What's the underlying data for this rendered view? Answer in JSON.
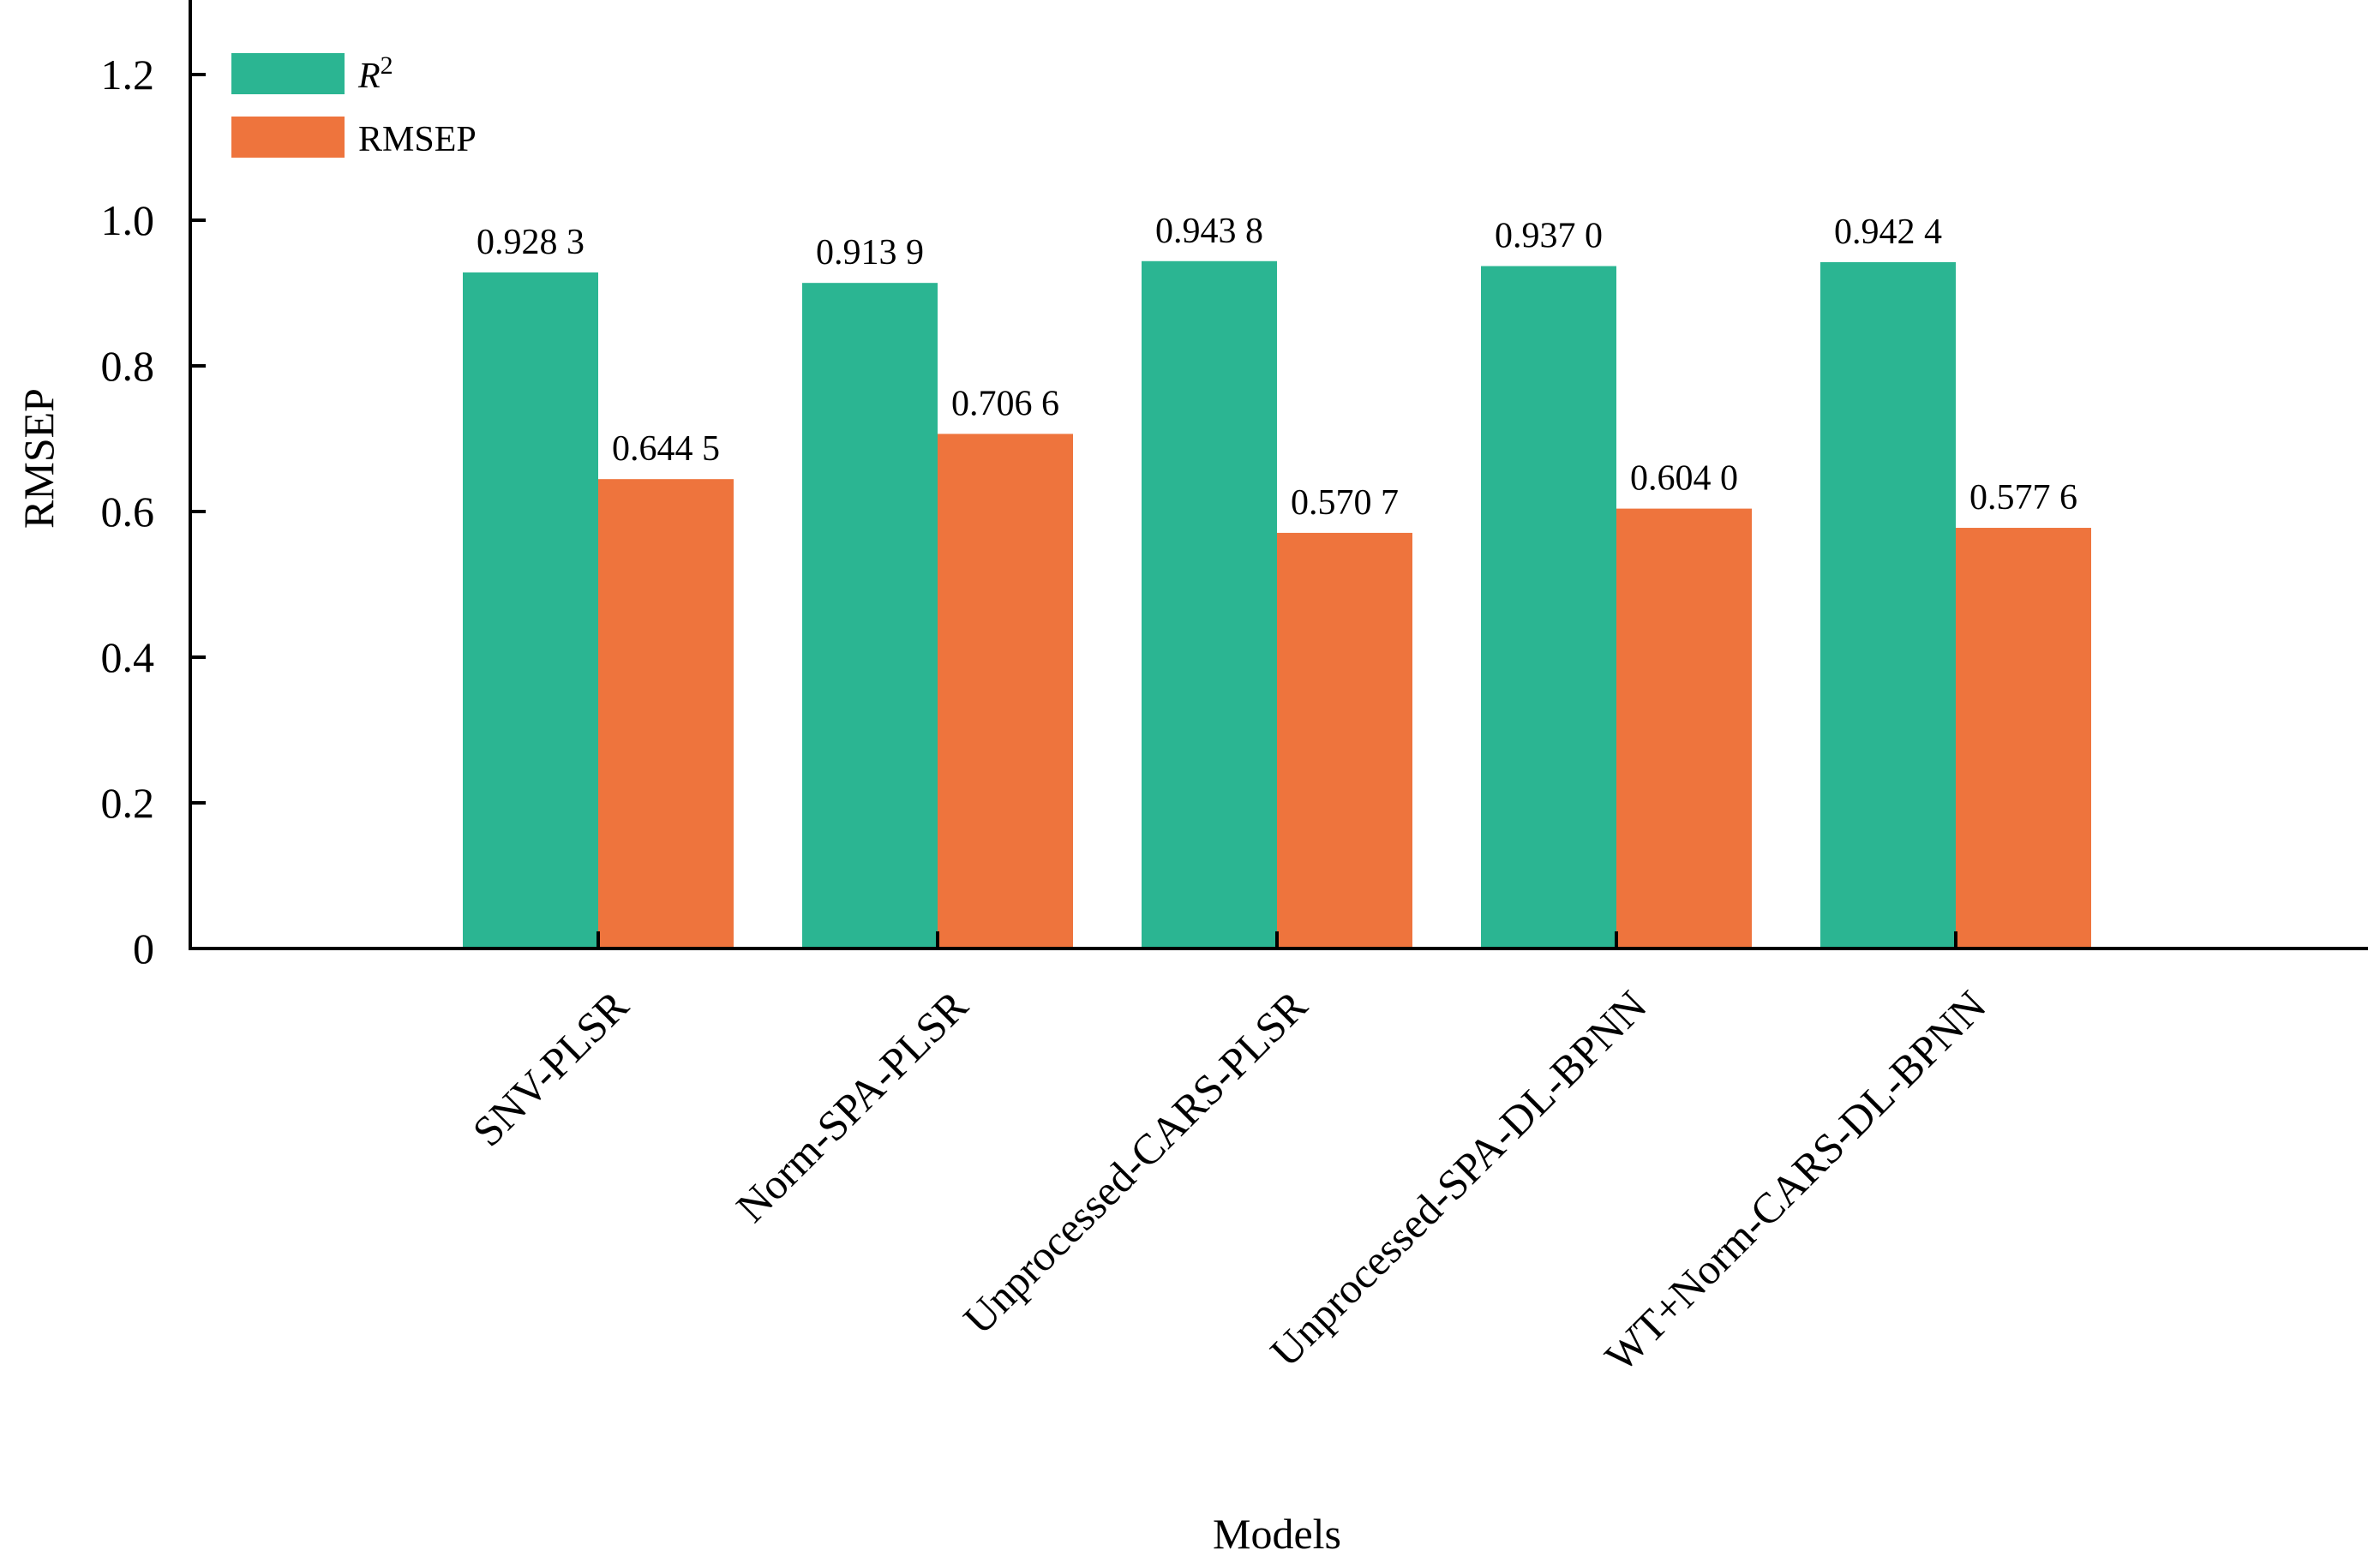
{
  "chart_data": {
    "type": "bar",
    "xlabel": "Models",
    "ylabel": "RMSEP",
    "ylim": [
      0,
      1.3
    ],
    "yticks": [
      {
        "value": 0,
        "label": "0"
      },
      {
        "value": 0.2,
        "label": "0.2"
      },
      {
        "value": 0.4,
        "label": "0.4"
      },
      {
        "value": 0.6,
        "label": "0.6"
      },
      {
        "value": 0.8,
        "label": "0.8"
      },
      {
        "value": 1.0,
        "label": "1.0"
      },
      {
        "value": 1.2,
        "label": "1.2"
      }
    ],
    "categories": [
      "SNV-PLSR",
      "Norm-SPA-PLSR",
      "Unprocessed-CARS-PLSR",
      "Unprocessed-SPA-DL-BPNN",
      "WT+Norm-CARS-DL-BPNN"
    ],
    "series": [
      {
        "name": "R",
        "name_superscript": "2",
        "color": "#2bb592",
        "values": [
          0.9283,
          0.9139,
          0.9438,
          0.937,
          0.9424
        ],
        "labels": [
          "0.928 3",
          "0.913 9",
          "0.943 8",
          "0.937 0",
          "0.942 4"
        ]
      },
      {
        "name": "RMSEP",
        "color": "#ee743d",
        "values": [
          0.6445,
          0.7066,
          0.5707,
          0.604,
          0.5776
        ],
        "labels": [
          "0.644 5",
          "0.706 6",
          "0.570 7",
          "0.604 0",
          "0.577 6"
        ]
      }
    ],
    "legend_position": "top-left",
    "grid": false
  }
}
